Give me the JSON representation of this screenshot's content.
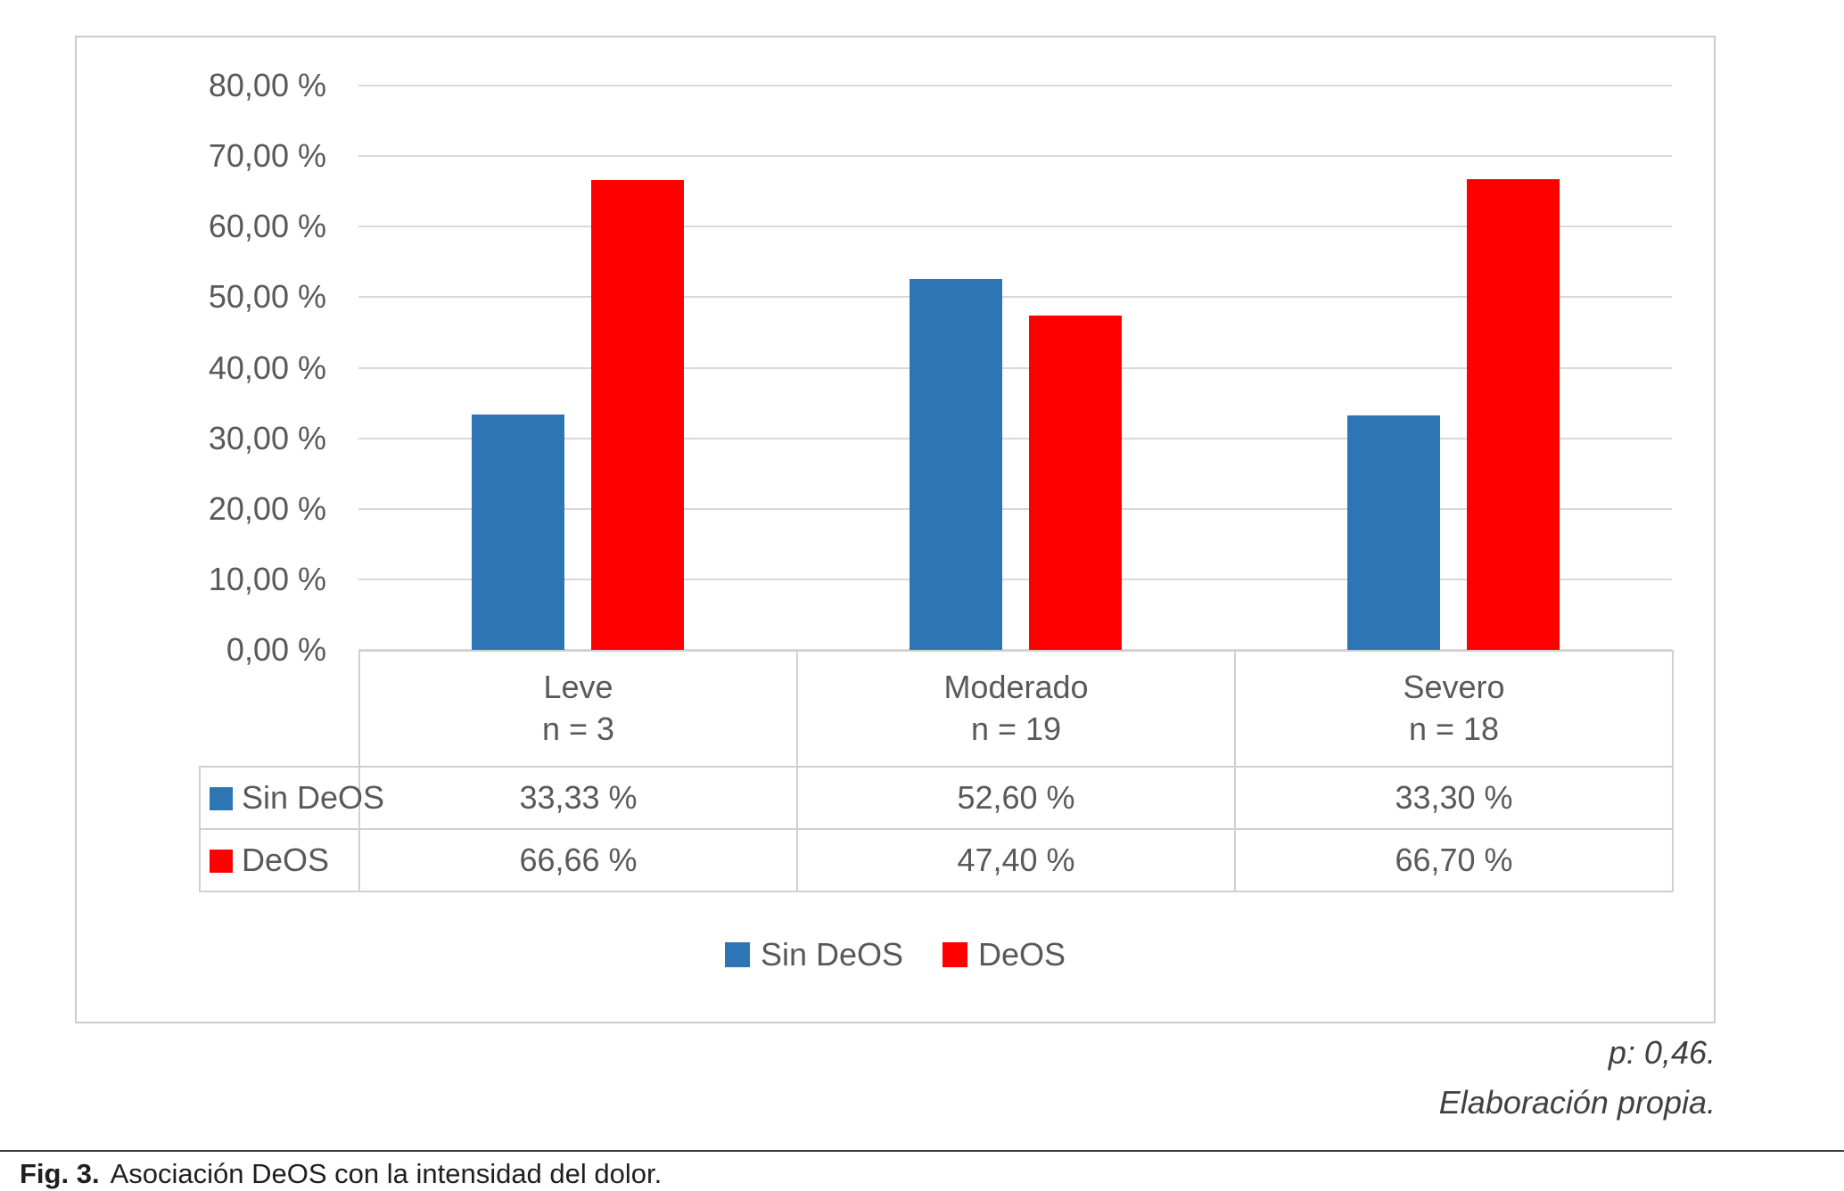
{
  "chart_data": {
    "type": "bar",
    "title": "",
    "xlabel": "",
    "ylabel": "",
    "categories": [
      "Leve",
      "Moderado",
      "Severo"
    ],
    "category_counts": [
      "n = 3",
      "n = 19",
      "n = 18"
    ],
    "series": [
      {
        "name": "Sin DeOS",
        "color": "#2E75B6",
        "values": [
          33.33,
          52.6,
          33.3
        ],
        "labels": [
          "33,33 %",
          "52,60 %",
          "33,30 %"
        ]
      },
      {
        "name": "DeOS",
        "color": "#FF0000",
        "values": [
          66.66,
          47.4,
          66.7
        ],
        "labels": [
          "66,66 %",
          "47,40 %",
          "66,70 %"
        ]
      }
    ],
    "ylim": [
      0,
      80
    ],
    "ytick_step": 10,
    "ytick_labels": [
      "0,00 %",
      "10,00 %",
      "20,00 %",
      "30,00 %",
      "40,00 %",
      "50,00 %",
      "60,00 %",
      "70,00 %",
      "80,00 %"
    ],
    "grid": true,
    "legend_position": "bottom",
    "data_table": true
  },
  "annotations": {
    "p_value": "p: 0,46.",
    "source": "Elaboración propia."
  },
  "caption": {
    "label": "Fig. 3.",
    "text": "Asociación DeOS con la intensidad del dolor."
  }
}
